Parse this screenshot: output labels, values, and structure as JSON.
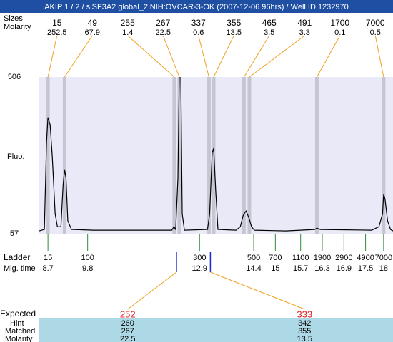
{
  "chart_data": {
    "type": "electropherogram",
    "title": "AKIP 1 / 2 / siSF3A2 global_2|NIH:OVCAR-3-OK (2007-12-06 96hrs) / Well ID 1232970",
    "y_label": "Fluo.",
    "ylim": [
      57,
      506
    ],
    "yticks": [
      57,
      506
    ],
    "xlim": [
      8.46,
      18.26
    ],
    "trace": {
      "color": "#000000",
      "x": [
        8.46,
        8.6,
        8.66,
        8.7,
        8.76,
        8.82,
        8.9,
        8.96,
        9.06,
        9.12,
        9.16,
        9.2,
        9.25,
        9.35,
        9.95,
        12.13,
        12.19,
        12.24,
        12.3,
        12.34,
        12.38,
        12.42,
        12.48,
        13.12,
        13.18,
        13.25,
        13.29,
        13.35,
        13.41,
        13.91,
        14.03,
        14.11,
        14.19,
        14.26,
        14.34,
        14.42,
        15.29,
        16.09,
        16.15,
        16.24,
        17.67,
        17.87,
        17.97,
        18.0,
        18.04,
        18.11,
        18.19,
        18.26
      ],
      "y": [
        65,
        69,
        318,
        390,
        369,
        277,
        114,
        77,
        77,
        196,
        241,
        216,
        94,
        69,
        67,
        67,
        77,
        69,
        216,
        520,
        520,
        114,
        67,
        69,
        114,
        288,
        302,
        175,
        69,
        67,
        77,
        110,
        122,
        104,
        77,
        67,
        65,
        69,
        73,
        69,
        67,
        77,
        114,
        171,
        155,
        94,
        69,
        65
      ]
    },
    "peaks": {
      "size_label": "Sizes",
      "molarity_label": "Molarity",
      "time": [
        8.7,
        9.16,
        12.2,
        12.34,
        13.16,
        13.29,
        14.13,
        14.28,
        16.15,
        18.0
      ],
      "sizes": [
        15,
        49,
        255,
        267,
        337,
        355,
        465,
        491,
        1700,
        7000
      ],
      "molarity": [
        252.5,
        67.9,
        1.4,
        22.5,
        0.6,
        13.5,
        3.5,
        3.3,
        0.1,
        0.5
      ]
    },
    "ladder": {
      "label": "Ladder",
      "time_label": "Mig. time",
      "sizes": [
        15,
        100,
        300,
        500,
        700,
        1100,
        1900,
        2900,
        4900,
        7000
      ],
      "time": [
        8.7,
        9.8,
        12.9,
        14.4,
        15,
        15.7,
        16.3,
        16.9,
        17.5,
        18
      ]
    },
    "expected": {
      "label": "Expected",
      "hint_label": "Hint",
      "matched_label": "Matched",
      "molarity_label": "Molarity",
      "time": [
        12.26,
        13.2
      ],
      "values": [
        252,
        333
      ],
      "hint": [
        260,
        342
      ],
      "matched": [
        267,
        355
      ],
      "molarity": [
        22.5,
        13.5
      ]
    }
  }
}
